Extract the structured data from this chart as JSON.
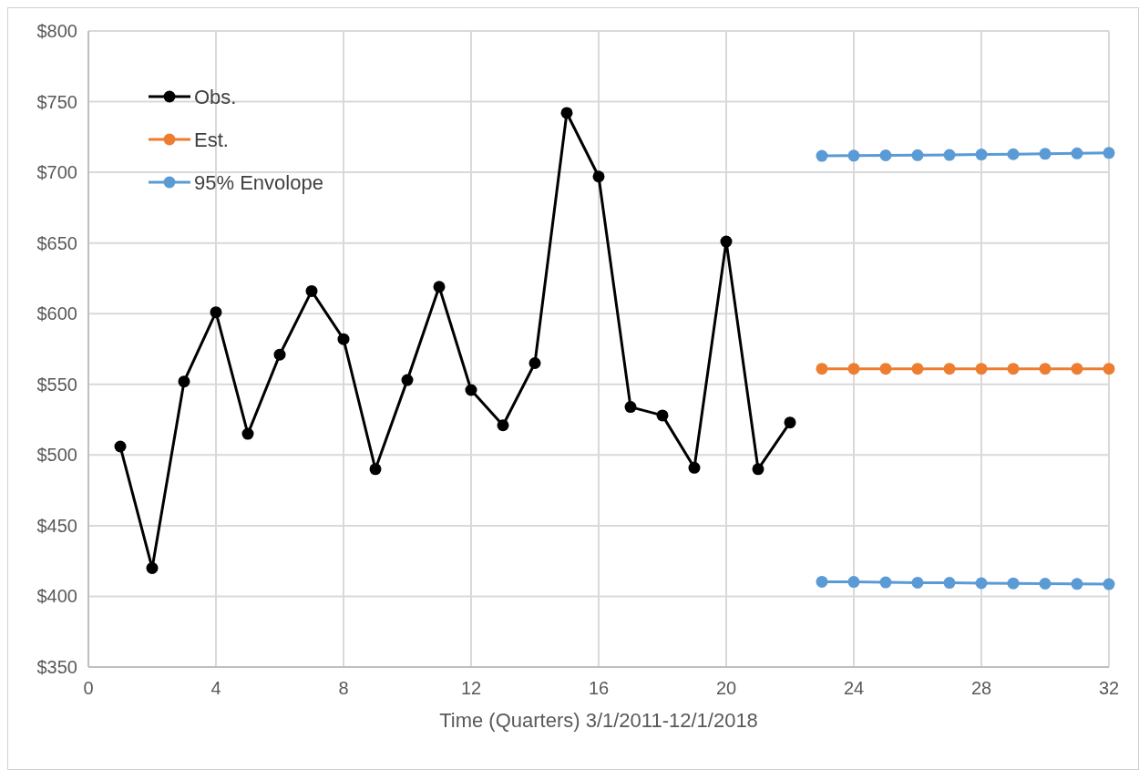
{
  "chart_data": {
    "type": "line",
    "xlabel": "Time (Quarters) 3/1/2011-12/1/2018",
    "xlim": [
      0,
      32
    ],
    "xticks": [
      0,
      4,
      8,
      12,
      16,
      20,
      24,
      28,
      32
    ],
    "ylim": [
      350,
      800
    ],
    "yticks": [
      {
        "value": 350,
        "label": "$350"
      },
      {
        "value": 400,
        "label": "$400"
      },
      {
        "value": 450,
        "label": "$450"
      },
      {
        "value": 500,
        "label": "$500"
      },
      {
        "value": 550,
        "label": "$550"
      },
      {
        "value": 600,
        "label": "$600"
      },
      {
        "value": 650,
        "label": "$650"
      },
      {
        "value": 700,
        "label": "$700"
      },
      {
        "value": 750,
        "label": "$750"
      },
      {
        "value": 800,
        "label": "$800"
      }
    ],
    "grid": true,
    "legend": "top left",
    "marker": "circle",
    "line_style": "solid",
    "series": [
      {
        "name": "Obs.",
        "color": "#000000",
        "x": [
          1,
          2,
          3,
          4,
          5,
          6,
          7,
          8,
          9,
          10,
          11,
          12,
          13,
          14,
          15,
          16,
          17,
          18,
          19,
          20,
          21,
          22
        ],
        "values": [
          506,
          420,
          552,
          601,
          515,
          571,
          616,
          582,
          490,
          553,
          619,
          546,
          521,
          565,
          742,
          697,
          534,
          528,
          491,
          651,
          490,
          523
        ]
      },
      {
        "name": "Est.",
        "color": "#ed7d31",
        "x": [
          23,
          24,
          25,
          26,
          27,
          28,
          29,
          30,
          31,
          32
        ],
        "values": [
          561,
          561,
          561,
          561,
          561,
          561,
          561,
          561,
          561,
          561
        ]
      },
      {
        "name": "95% Envolope",
        "color": "#5b9bd5",
        "x": [
          23,
          24,
          25,
          26,
          27,
          28,
          29,
          30,
          31,
          32
        ],
        "values": [
          711.6,
          711.8,
          712,
          712.1,
          712.3,
          712.6,
          712.8,
          713.1,
          713.4,
          713.7
        ]
      },
      {
        "color": "#5b9bd5",
        "x": [
          23,
          24,
          25,
          26,
          27,
          28,
          29,
          30,
          31,
          32
        ],
        "values": [
          410.3,
          410.2,
          409.9,
          409.7,
          409.6,
          409.3,
          409.2,
          409,
          408.8,
          408.6
        ]
      }
    ]
  }
}
